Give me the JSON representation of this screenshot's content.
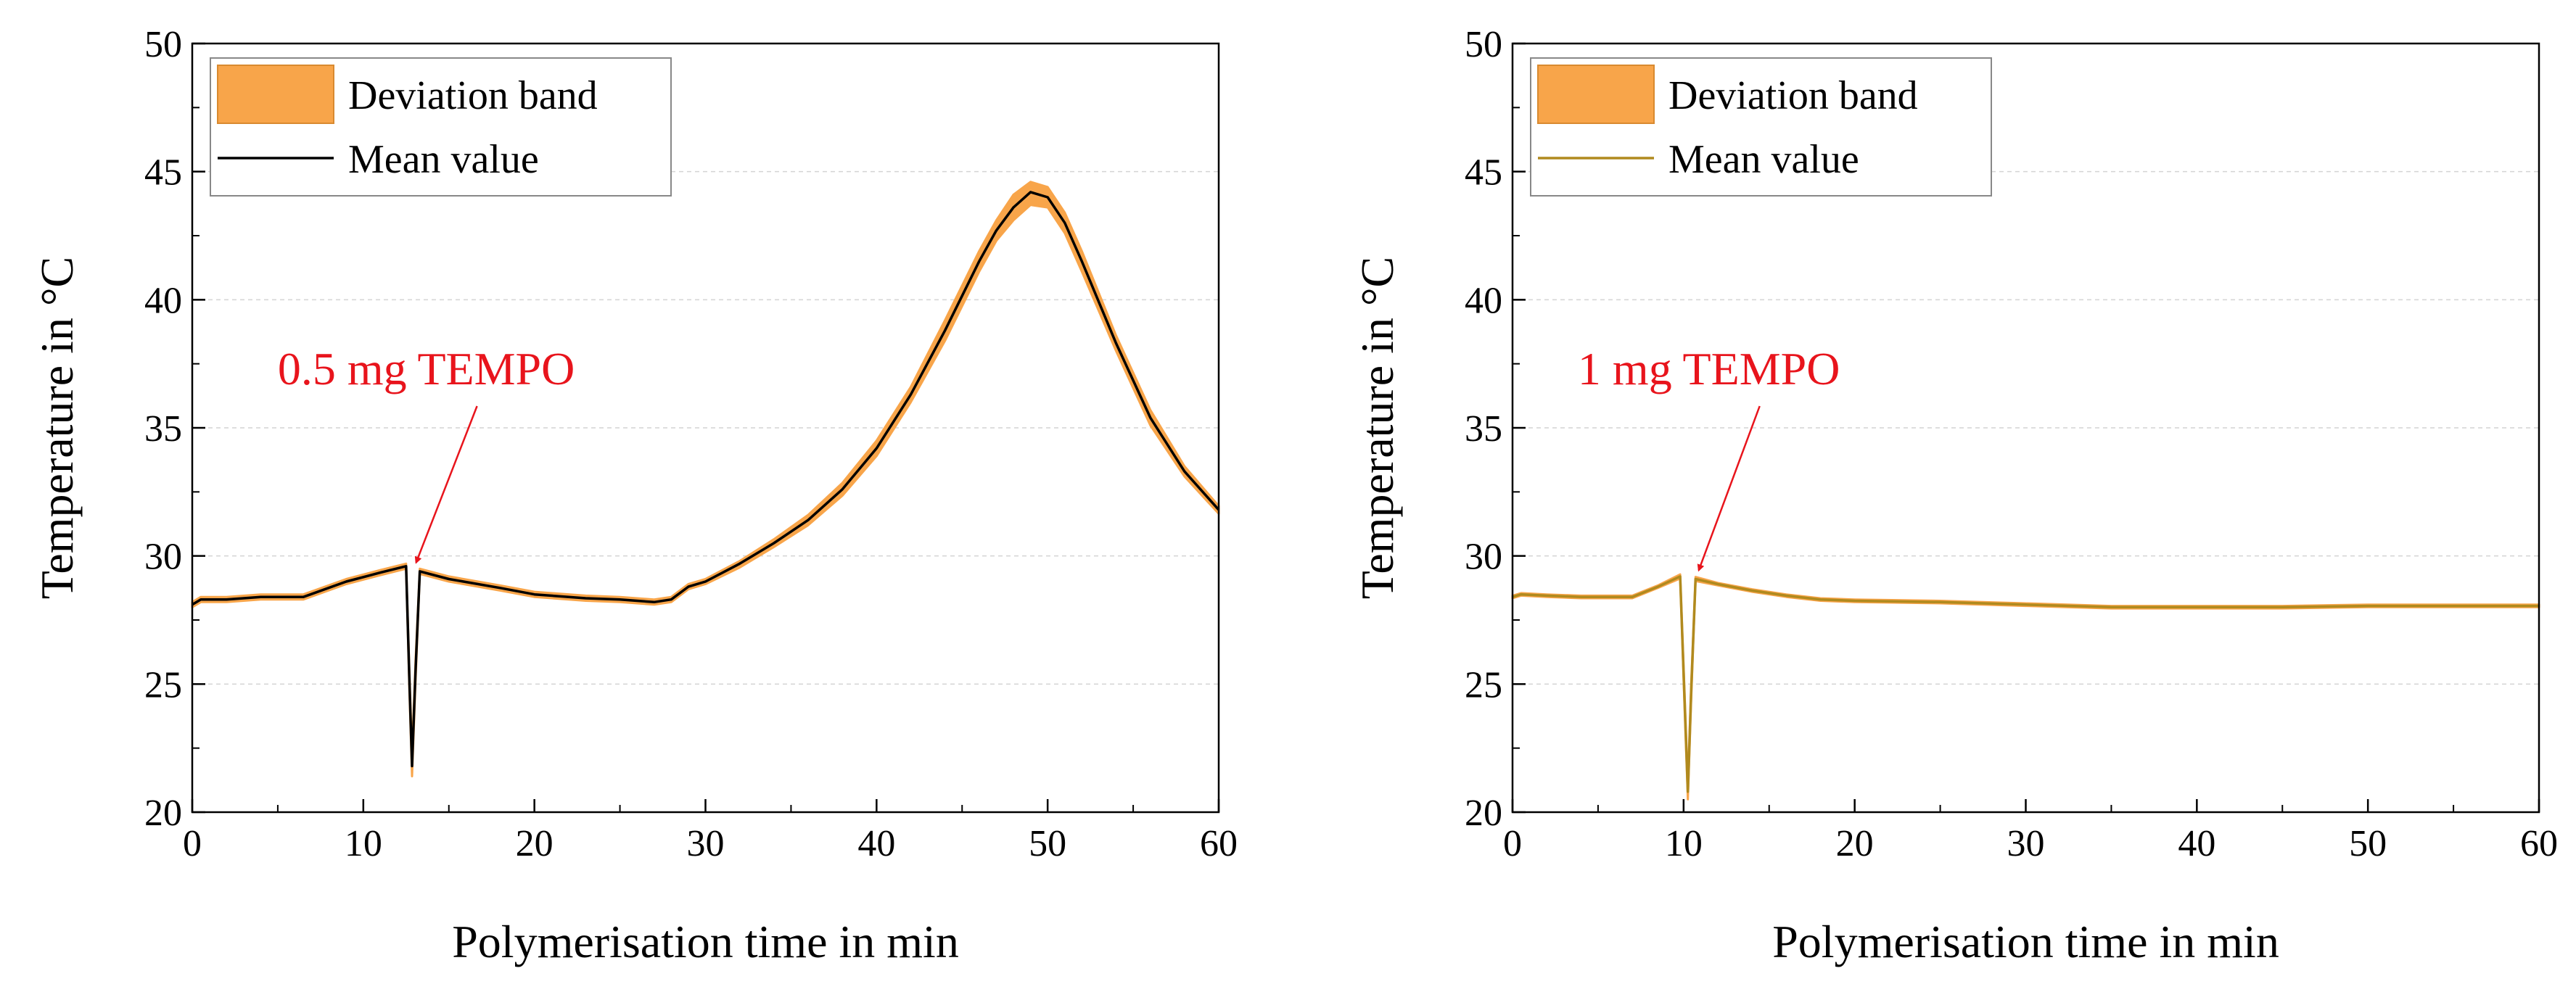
{
  "chart_data": [
    {
      "type": "area",
      "title": "",
      "xlabel": "Polymerisation time in min",
      "ylabel": "Temperature in °C",
      "xlim": [
        0,
        60
      ],
      "ylim": [
        20,
        50
      ],
      "xticks": [
        "0",
        "10",
        "20",
        "30",
        "40",
        "50",
        "60"
      ],
      "yticks": [
        "20",
        "25",
        "30",
        "35",
        "40",
        "45",
        "50"
      ],
      "grid": "horizontal dashed",
      "legend": {
        "placement": "top-left",
        "entries": [
          "Deviation band",
          "Mean value"
        ]
      },
      "annotation": {
        "text": "0.5 mg TEMPO",
        "target": [
          13,
          29.4
        ]
      },
      "colors": {
        "band": "#f8a54a",
        "mean": "#000000",
        "annotation": "#e8141c"
      },
      "series": [
        {
          "name": "Mean value",
          "x": [
            0,
            0.5,
            2,
            4,
            6.5,
            9,
            11,
            12.5,
            12.7,
            12.85,
            13.05,
            13.3,
            15,
            18,
            20,
            23,
            25,
            27,
            28,
            29,
            30,
            32,
            34,
            36,
            38,
            40,
            42,
            44,
            46,
            47,
            48,
            49,
            50,
            51,
            52,
            54,
            56,
            58,
            60
          ],
          "y": [
            28.1,
            28.3,
            28.3,
            28.4,
            28.4,
            29.0,
            29.35,
            29.6,
            25.0,
            21.8,
            25.5,
            29.4,
            29.1,
            28.75,
            28.5,
            28.35,
            28.3,
            28.2,
            28.3,
            28.8,
            29.0,
            29.7,
            30.5,
            31.4,
            32.6,
            34.2,
            36.3,
            38.8,
            41.5,
            42.7,
            43.6,
            44.2,
            44.0,
            43.0,
            41.5,
            38.3,
            35.4,
            33.3,
            31.8
          ]
        },
        {
          "name": "Deviation band",
          "x": [
            0,
            0.5,
            2,
            4,
            6.5,
            9,
            11,
            12.5,
            12.7,
            12.85,
            13.05,
            13.3,
            15,
            18,
            20,
            23,
            25,
            27,
            28,
            29,
            30,
            32,
            34,
            36,
            38,
            40,
            42,
            44,
            46,
            47,
            48,
            49,
            50,
            51,
            52,
            54,
            56,
            58,
            60
          ],
          "upper": [
            28.2,
            28.4,
            28.4,
            28.5,
            28.5,
            29.1,
            29.45,
            29.7,
            25.4,
            22.3,
            25.9,
            29.5,
            29.2,
            28.85,
            28.6,
            28.45,
            28.4,
            28.3,
            28.4,
            28.9,
            29.1,
            29.8,
            30.65,
            31.6,
            32.85,
            34.5,
            36.6,
            39.2,
            41.9,
            43.1,
            44.1,
            44.6,
            44.4,
            43.4,
            41.9,
            38.6,
            35.7,
            33.5,
            31.95
          ],
          "lower": [
            28.0,
            28.2,
            28.2,
            28.3,
            28.3,
            28.9,
            29.25,
            29.5,
            24.6,
            21.4,
            25.1,
            29.3,
            29.0,
            28.65,
            28.4,
            28.25,
            28.2,
            28.1,
            28.2,
            28.7,
            28.9,
            29.55,
            30.35,
            31.2,
            32.35,
            33.9,
            36.0,
            38.4,
            41.1,
            42.3,
            43.1,
            43.7,
            43.6,
            42.6,
            41.1,
            38.0,
            35.1,
            33.1,
            31.65
          ]
        }
      ]
    },
    {
      "type": "area",
      "title": "",
      "xlabel": "Polymerisation time in min",
      "ylabel": "Temperature in °C",
      "xlim": [
        0,
        60
      ],
      "ylim": [
        20,
        50
      ],
      "xticks": [
        "0",
        "10",
        "20",
        "30",
        "40",
        "50",
        "60"
      ],
      "yticks": [
        "20",
        "25",
        "30",
        "35",
        "40",
        "45",
        "50"
      ],
      "grid": "horizontal dashed",
      "legend": {
        "placement": "top-left",
        "entries": [
          "Deviation band",
          "Mean value"
        ]
      },
      "annotation": {
        "text": "1 mg TEMPO",
        "target": [
          10.8,
          29.1
        ]
      },
      "colors": {
        "band": "#f8a54a",
        "mean": "#b08a1e",
        "annotation": "#e8141c"
      },
      "series": [
        {
          "name": "Mean value",
          "x": [
            0,
            0.5,
            2,
            4,
            7,
            8.5,
            9.8,
            10.05,
            10.25,
            10.45,
            10.7,
            12,
            14,
            16,
            18,
            20,
            25,
            30,
            35,
            40,
            45,
            50,
            55,
            60
          ],
          "y": [
            28.4,
            28.5,
            28.45,
            28.4,
            28.4,
            28.8,
            29.2,
            24.5,
            20.8,
            24.8,
            29.1,
            28.9,
            28.65,
            28.45,
            28.3,
            28.25,
            28.2,
            28.1,
            28.0,
            28.0,
            28.0,
            28.05,
            28.05,
            28.05
          ]
        },
        {
          "name": "Deviation band",
          "x": [
            0,
            0.5,
            2,
            4,
            7,
            8.5,
            9.8,
            10.05,
            10.25,
            10.45,
            10.7,
            12,
            14,
            16,
            18,
            20,
            25,
            30,
            35,
            40,
            45,
            50,
            55,
            60
          ],
          "upper": [
            28.45,
            28.55,
            28.5,
            28.45,
            28.45,
            28.85,
            29.28,
            24.8,
            21.1,
            25.1,
            29.18,
            28.95,
            28.7,
            28.5,
            28.35,
            28.3,
            28.25,
            28.15,
            28.05,
            28.05,
            28.05,
            28.1,
            28.1,
            28.1
          ],
          "lower": [
            28.35,
            28.45,
            28.4,
            28.35,
            28.35,
            28.75,
            29.12,
            24.2,
            20.5,
            24.5,
            29.02,
            28.85,
            28.6,
            28.4,
            28.25,
            28.2,
            28.15,
            28.05,
            27.95,
            27.95,
            27.95,
            28.0,
            28.0,
            28.0
          ]
        }
      ]
    }
  ]
}
